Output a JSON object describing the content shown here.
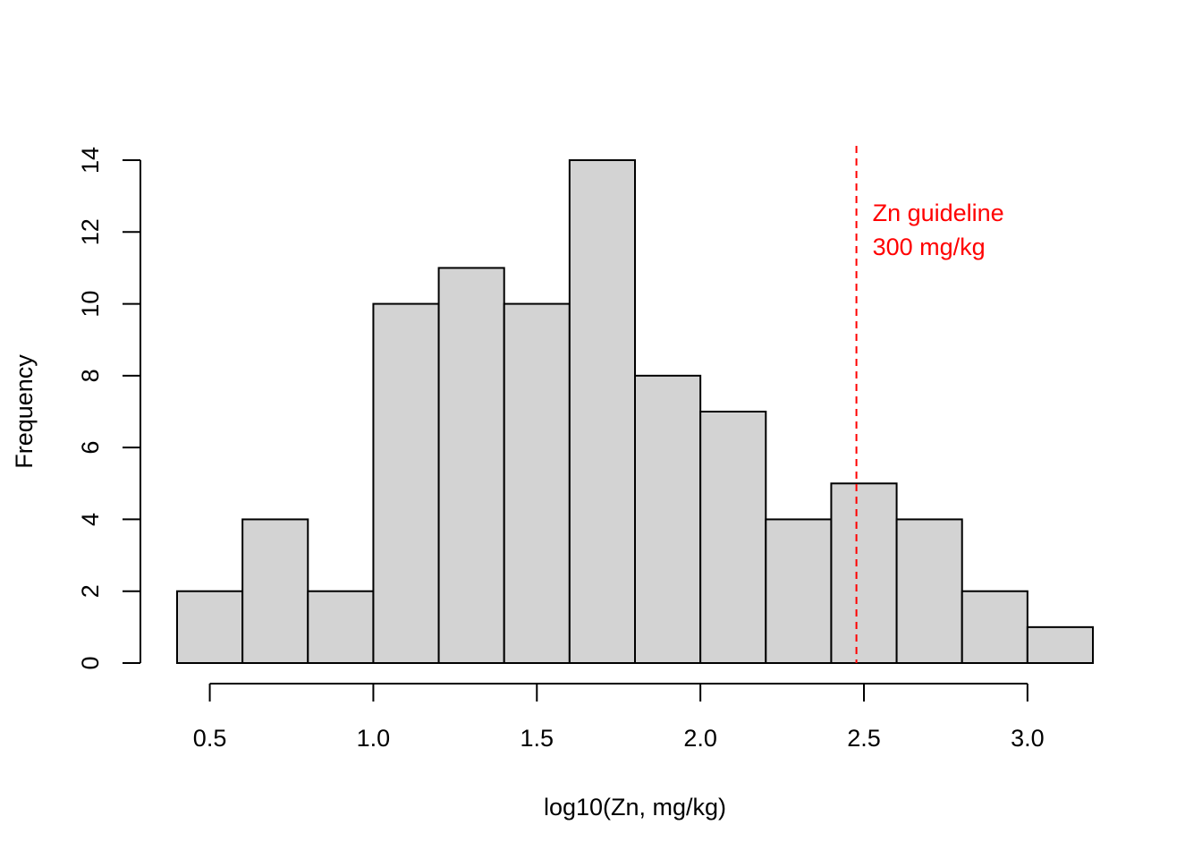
{
  "chart_data": {
    "type": "bar",
    "title": "",
    "xlabel": "log10(Zn, mg/kg)",
    "ylabel": "Frequency",
    "bins": [
      {
        "x0": 0.4,
        "x1": 0.6,
        "count": 2
      },
      {
        "x0": 0.6,
        "x1": 0.8,
        "count": 4
      },
      {
        "x0": 0.8,
        "x1": 1.0,
        "count": 2
      },
      {
        "x0": 1.0,
        "x1": 1.2,
        "count": 10
      },
      {
        "x0": 1.2,
        "x1": 1.4,
        "count": 11
      },
      {
        "x0": 1.4,
        "x1": 1.6,
        "count": 10
      },
      {
        "x0": 1.6,
        "x1": 1.8,
        "count": 14
      },
      {
        "x0": 1.8,
        "x1": 2.0,
        "count": 8
      },
      {
        "x0": 2.0,
        "x1": 2.2,
        "count": 7
      },
      {
        "x0": 2.2,
        "x1": 2.4,
        "count": 4
      },
      {
        "x0": 2.4,
        "x1": 2.6,
        "count": 5
      },
      {
        "x0": 2.6,
        "x1": 2.8,
        "count": 4
      },
      {
        "x0": 2.8,
        "x1": 3.0,
        "count": 2
      },
      {
        "x0": 3.0,
        "x1": 3.2,
        "count": 1
      }
    ],
    "xticks": [
      {
        "value": 0.5,
        "label": "0.5"
      },
      {
        "value": 1.0,
        "label": "1.0"
      },
      {
        "value": 1.5,
        "label": "1.5"
      },
      {
        "value": 2.0,
        "label": "2.0"
      },
      {
        "value": 2.5,
        "label": "2.5"
      },
      {
        "value": 3.0,
        "label": "3.0"
      }
    ],
    "yticks": [
      {
        "value": 0,
        "label": "0"
      },
      {
        "value": 2,
        "label": "2"
      },
      {
        "value": 4,
        "label": "4"
      },
      {
        "value": 6,
        "label": "6"
      },
      {
        "value": 8,
        "label": "8"
      },
      {
        "value": 10,
        "label": "10"
      },
      {
        "value": 12,
        "label": "12"
      },
      {
        "value": 14,
        "label": "14"
      }
    ],
    "xlim": [
      0.4,
      3.2
    ],
    "ylim": [
      0,
      14
    ],
    "grid": false,
    "bar_fill": "#d3d3d3",
    "bar_stroke": "#000000",
    "guideline": {
      "x": 2.477,
      "color": "#ff0000",
      "style": "dashed",
      "label_lines": [
        "Zn guideline",
        "300 mg/kg"
      ]
    }
  }
}
